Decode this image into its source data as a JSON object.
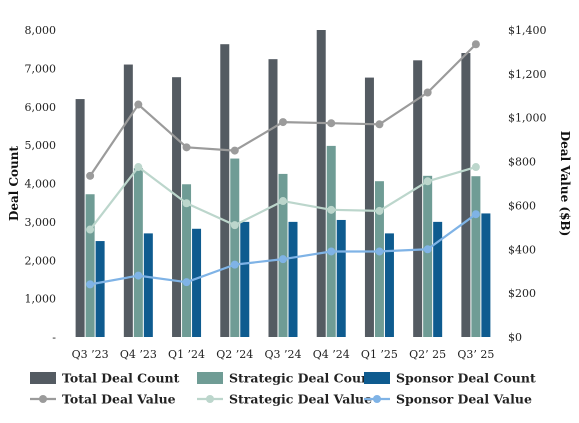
{
  "chart_data": {
    "type": "bar",
    "categories": [
      "Q3 ’23",
      "Q4 ’23",
      "Q1 ’24",
      "Q2 ’24",
      "Q3 ’24",
      "Q4 ’24",
      "Q1 ’25",
      "Q2’ 25",
      "Q3’ 25"
    ],
    "series": [
      {
        "name": "Total Deal Count",
        "kind": "bar",
        "axis": "left",
        "color": "#545b62",
        "values": [
          6200,
          7100,
          6770,
          7630,
          7240,
          8000,
          6760,
          7210,
          7400
        ]
      },
      {
        "name": "Strategic Deal Count",
        "kind": "bar",
        "axis": "left",
        "color": "#6f9c95",
        "values": [
          3720,
          4400,
          3980,
          4650,
          4250,
          4980,
          4060,
          4200,
          4190
        ]
      },
      {
        "name": "Sponsor Deal Count",
        "kind": "bar",
        "axis": "left",
        "color": "#0e5b8f",
        "values": [
          2500,
          2700,
          2820,
          3000,
          3000,
          3050,
          2700,
          3000,
          3220
        ]
      },
      {
        "name": "Total Deal Value",
        "kind": "line",
        "axis": "right",
        "color": "#9b9b9b",
        "values": [
          735,
          1060,
          865,
          850,
          980,
          975,
          970,
          1115,
          1335
        ]
      },
      {
        "name": "Strategic Deal Value",
        "kind": "line",
        "axis": "right",
        "color": "#bcd6cc",
        "values": [
          490,
          775,
          610,
          510,
          620,
          580,
          575,
          710,
          775
        ]
      },
      {
        "name": "Sponsor Deal Value",
        "kind": "line",
        "axis": "right",
        "color": "#7fb3e6",
        "values": [
          240,
          280,
          250,
          330,
          355,
          390,
          390,
          400,
          560
        ]
      }
    ],
    "ylabel": "Deal Count",
    "y2label": "Deal Value ($B)",
    "ylim": [
      0,
      8000
    ],
    "y2lim": [
      0,
      1400
    ],
    "yticks": [
      "-",
      "1,000",
      "2,000",
      "3,000",
      "4,000",
      "5,000",
      "6,000",
      "7,000",
      "8,000"
    ],
    "y2ticks": [
      "$0",
      "$200",
      "$400",
      "$600",
      "$800",
      "$1,000",
      "$1,200",
      "$1,400"
    ],
    "grid": false,
    "legend_position": "bottom"
  }
}
